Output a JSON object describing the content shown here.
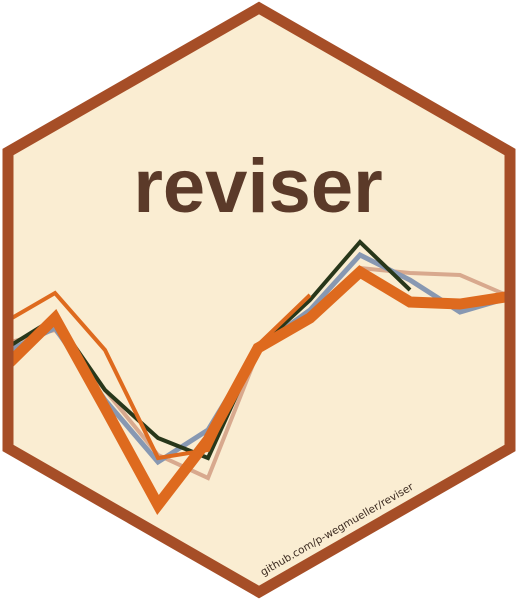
{
  "logo": {
    "title": "reviser",
    "url": "github.com/p-wegmueller/reviser"
  },
  "colors": {
    "background": "#FAEDD2",
    "border": "#A64E27",
    "title": "#5B3A29",
    "url": "#3B2A20",
    "line_orange": "#DE6A1E",
    "line_dark_green": "#28371A",
    "line_blue_grey": "#8798B2",
    "line_tan": "#D8A98E"
  },
  "icons": [
    "hex-sticker-icon",
    "revision-lines-icon"
  ]
}
